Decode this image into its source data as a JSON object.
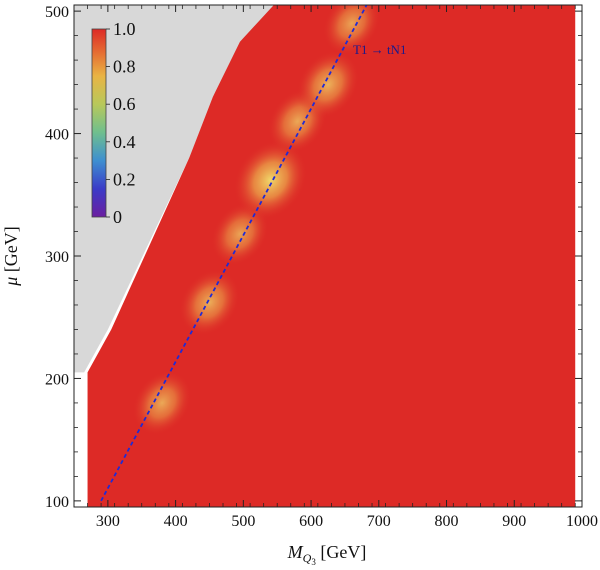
{
  "chart_data": {
    "type": "heatmap",
    "title": "",
    "xlabel": {
      "main": "M",
      "sub": "Q",
      "subsub": "3",
      "unit": " [GeV]"
    },
    "ylabel": {
      "symbol": "μ",
      "unit": " [GeV]"
    },
    "xlim": [
      250,
      1000
    ],
    "ylim": [
      95,
      505
    ],
    "xticks": [
      300,
      400,
      500,
      600,
      700,
      800,
      900,
      1000
    ],
    "yticks": [
      100,
      200,
      300,
      400,
      500
    ],
    "colorbar": {
      "range": [
        0,
        1.0
      ],
      "ticks": [
        "0",
        "0.2",
        "0.4",
        "0.6",
        "0.8",
        "1.0"
      ],
      "tick_values": [
        0,
        0.2,
        0.4,
        0.6,
        0.8,
        1.0
      ],
      "placement": "top-left"
    },
    "value_range": [
      0,
      1.0
    ],
    "dominant_value": 1.0,
    "excluded_region_color": "#d8d8d8",
    "excluded_boundary": [
      [
        265,
        205
      ],
      [
        300,
        240
      ],
      [
        420,
        380
      ],
      [
        455,
        430
      ],
      [
        500,
        475
      ],
      [
        545,
        505
      ]
    ],
    "data_region": [
      [
        270,
        95
      ],
      [
        270,
        205
      ],
      [
        305,
        240
      ],
      [
        420,
        380
      ],
      [
        455,
        430
      ],
      [
        495,
        475
      ],
      [
        545,
        505
      ],
      [
        990,
        505
      ],
      [
        990,
        95
      ]
    ],
    "low_value_spots": [
      {
        "x": 380,
        "y": 180,
        "value": 0.88
      },
      {
        "x": 450,
        "y": 262,
        "value": 0.86
      },
      {
        "x": 495,
        "y": 318,
        "value": 0.9
      },
      {
        "x": 540,
        "y": 362,
        "value": 0.7
      },
      {
        "x": 580,
        "y": 410,
        "value": 0.88
      },
      {
        "x": 625,
        "y": 440,
        "value": 0.84
      },
      {
        "x": 660,
        "y": 490,
        "value": 0.9
      }
    ],
    "threshold_line": {
      "label": "T1 → tN1",
      "style": "dashed",
      "color": "#1f2ad6",
      "points": [
        [
          290,
          100
        ],
        [
          682,
          505
        ]
      ]
    }
  }
}
